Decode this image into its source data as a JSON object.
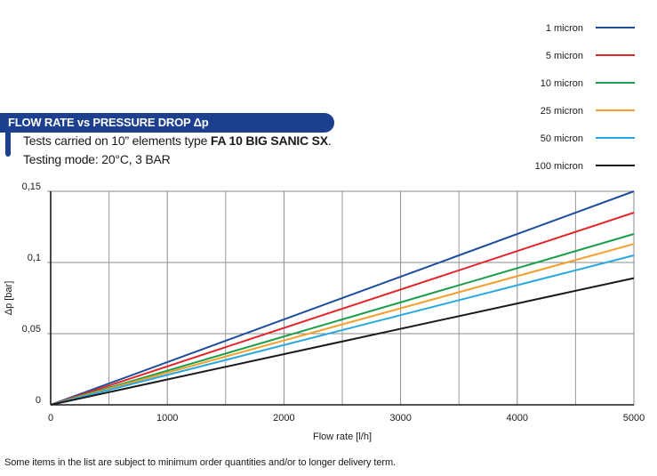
{
  "header": {
    "title": "FLOW RATE vs PRESSURE DROP Δp",
    "line1_prefix": "Tests carried on 10” elements type ",
    "line1_bold": "FA 10 BIG SANIC SX",
    "line1_suffix": ".",
    "line2": "Testing mode: 20°C, 3 BAR"
  },
  "footnote": "Some items in the list are subject to minimum order quantities and/or to longer delivery term.",
  "chart_data": {
    "type": "line",
    "title": "FLOW RATE vs PRESSURE DROP Δp",
    "xlabel": "Flow rate [l/h]",
    "ylabel": "Δp [bar]",
    "xlim": [
      0,
      5000
    ],
    "ylim": [
      0,
      0.15
    ],
    "x_ticks": [
      0,
      1000,
      2000,
      3000,
      4000,
      5000
    ],
    "x_tick_labels": [
      "0",
      "1000",
      "2000",
      "3000",
      "4000",
      "5000"
    ],
    "y_ticks": [
      0,
      0.05,
      0.1,
      0.15
    ],
    "y_tick_labels": [
      "0",
      "0,05",
      "0,1",
      "0,15"
    ],
    "x_minor_gridlines": [
      500,
      1500,
      2500,
      3500,
      4500
    ],
    "grid": true,
    "legend_position": "top-right",
    "series": [
      {
        "name": "1 micron",
        "color": "#1f4e9c",
        "x": [
          0,
          5000
        ],
        "y": [
          0,
          0.15
        ]
      },
      {
        "name": "5 micron",
        "color": "#e3262a",
        "x": [
          0,
          5000
        ],
        "y": [
          0,
          0.135
        ]
      },
      {
        "name": "10 micron",
        "color": "#1b9d4a",
        "x": [
          0,
          5000
        ],
        "y": [
          0,
          0.12
        ]
      },
      {
        "name": "25 micron",
        "color": "#f4a02c",
        "x": [
          0,
          5000
        ],
        "y": [
          0,
          0.113
        ]
      },
      {
        "name": "50 micron",
        "color": "#27a8e0",
        "x": [
          0,
          5000
        ],
        "y": [
          0,
          0.105
        ]
      },
      {
        "name": "100 micron",
        "color": "#1a1a1a",
        "x": [
          0,
          5000
        ],
        "y": [
          0,
          0.089
        ]
      }
    ]
  }
}
